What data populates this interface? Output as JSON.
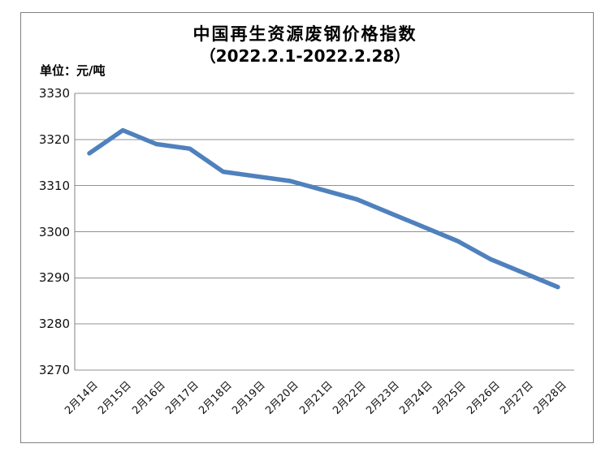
{
  "chart_data": {
    "type": "line",
    "title": "中国再生资源废钢价格指数",
    "subtitle": "（2022.2.1-2022.2.28）",
    "unit_label": "单位：元/吨",
    "categories": [
      "2月14日",
      "2月15日",
      "2月16日",
      "2月17日",
      "2月18日",
      "2月19日",
      "2月20日",
      "2月21日",
      "2月22日",
      "2月23日",
      "2月24日",
      "2月25日",
      "2月26日",
      "2月27日",
      "2月28日"
    ],
    "values": [
      3317,
      3322,
      3319,
      3318,
      3313,
      3312,
      3311,
      3309,
      3307,
      3304,
      3301,
      3298,
      3294,
      3291,
      3288
    ],
    "ylim": [
      3270,
      3330
    ],
    "yticks": [
      3330,
      3320,
      3310,
      3300,
      3290,
      3280,
      3270
    ],
    "xlabel": "",
    "ylabel": "",
    "legend": "none",
    "grid": "horizontal",
    "line_color": "#4F81BD",
    "grid_color": "#909090",
    "axis_color": "#808080",
    "frame_border_color": "#808080",
    "text_color": "#000000"
  }
}
